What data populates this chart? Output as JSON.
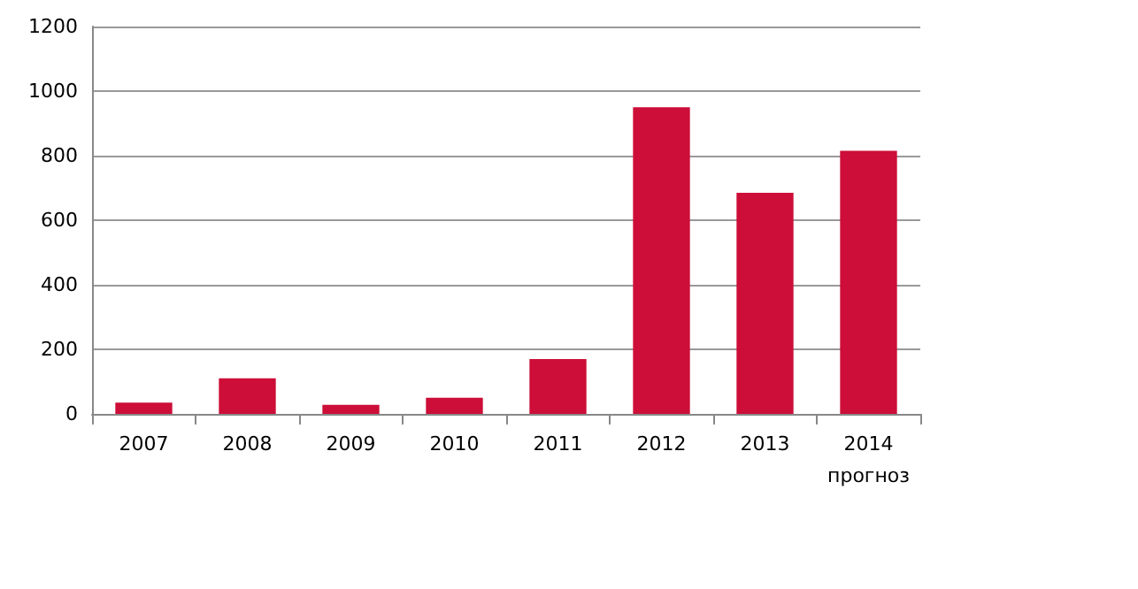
{
  "chart_data": {
    "type": "bar",
    "categories": [
      "2007",
      "2008",
      "2009",
      "2010",
      "2011",
      "2012",
      "2013",
      "2014\nпрогноз"
    ],
    "values": [
      35,
      110,
      28,
      50,
      170,
      950,
      685,
      815
    ],
    "color": "#cc0e38",
    "ylim": [
      0,
      1200
    ],
    "yticks": [
      0,
      200,
      400,
      600,
      800,
      1000,
      1200
    ],
    "grid": "y"
  }
}
